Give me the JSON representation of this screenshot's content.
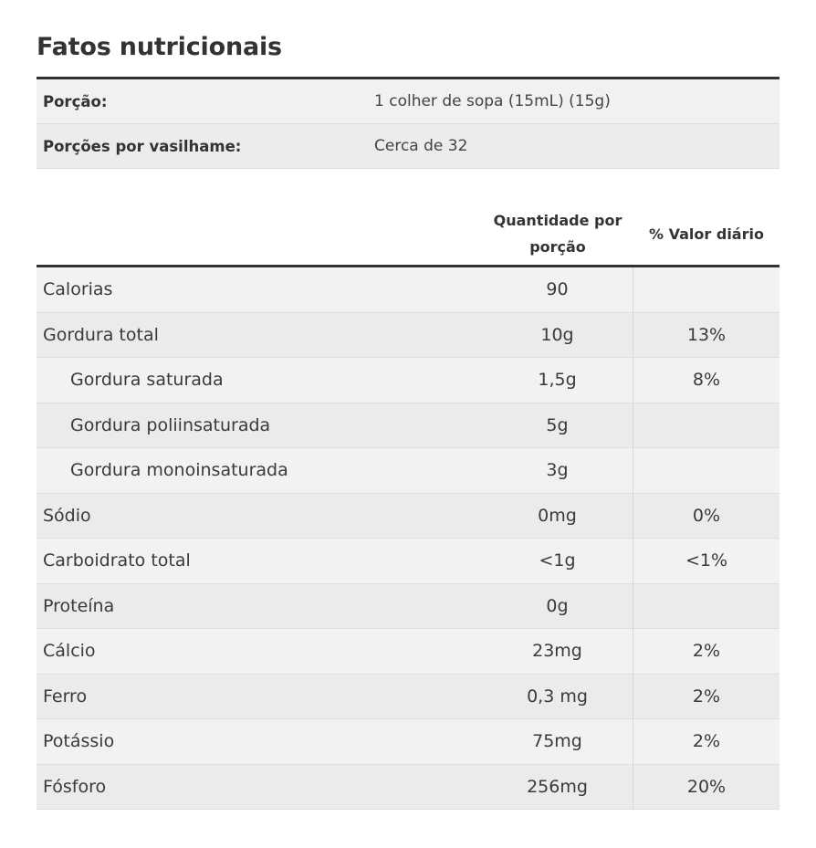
{
  "title": "Fatos nutricionais",
  "serving": [
    {
      "label": "Porção:",
      "value": "1 colher de sopa (15mL) (15g)"
    },
    {
      "label": "Porções por vasilhame:",
      "value": "Cerca de 32"
    }
  ],
  "table_header": {
    "amount_line1": "Quantidade por",
    "amount_line2": "porção",
    "daily_value": "% Valor diário"
  },
  "nutrients": [
    {
      "name": "Calorias",
      "amount": "90",
      "dv": "",
      "sub": false
    },
    {
      "name": "Gordura total",
      "amount": "10g",
      "dv": "13%",
      "sub": false
    },
    {
      "name": "Gordura saturada",
      "amount": "1,5g",
      "dv": "8%",
      "sub": true
    },
    {
      "name": "Gordura poliinsaturada",
      "amount": "5g",
      "dv": "",
      "sub": true
    },
    {
      "name": "Gordura monoinsaturada",
      "amount": "3g",
      "dv": "",
      "sub": true
    },
    {
      "name": "Sódio",
      "amount": "0mg",
      "dv": "0%",
      "sub": false
    },
    {
      "name": "Carboidrato total",
      "amount": "<1g",
      "dv": "<1%",
      "sub": false
    },
    {
      "name": "Proteína",
      "amount": "0g",
      "dv": "",
      "sub": false
    },
    {
      "name": "Cálcio",
      "amount": "23mg",
      "dv": "2%",
      "sub": false
    },
    {
      "name": "Ferro",
      "amount": "0,3 mg",
      "dv": "2%",
      "sub": false
    },
    {
      "name": "Potássio",
      "amount": "75mg",
      "dv": "2%",
      "sub": false
    },
    {
      "name": "Fósforo",
      "amount": "256mg",
      "dv": "20%",
      "sub": false
    }
  ]
}
